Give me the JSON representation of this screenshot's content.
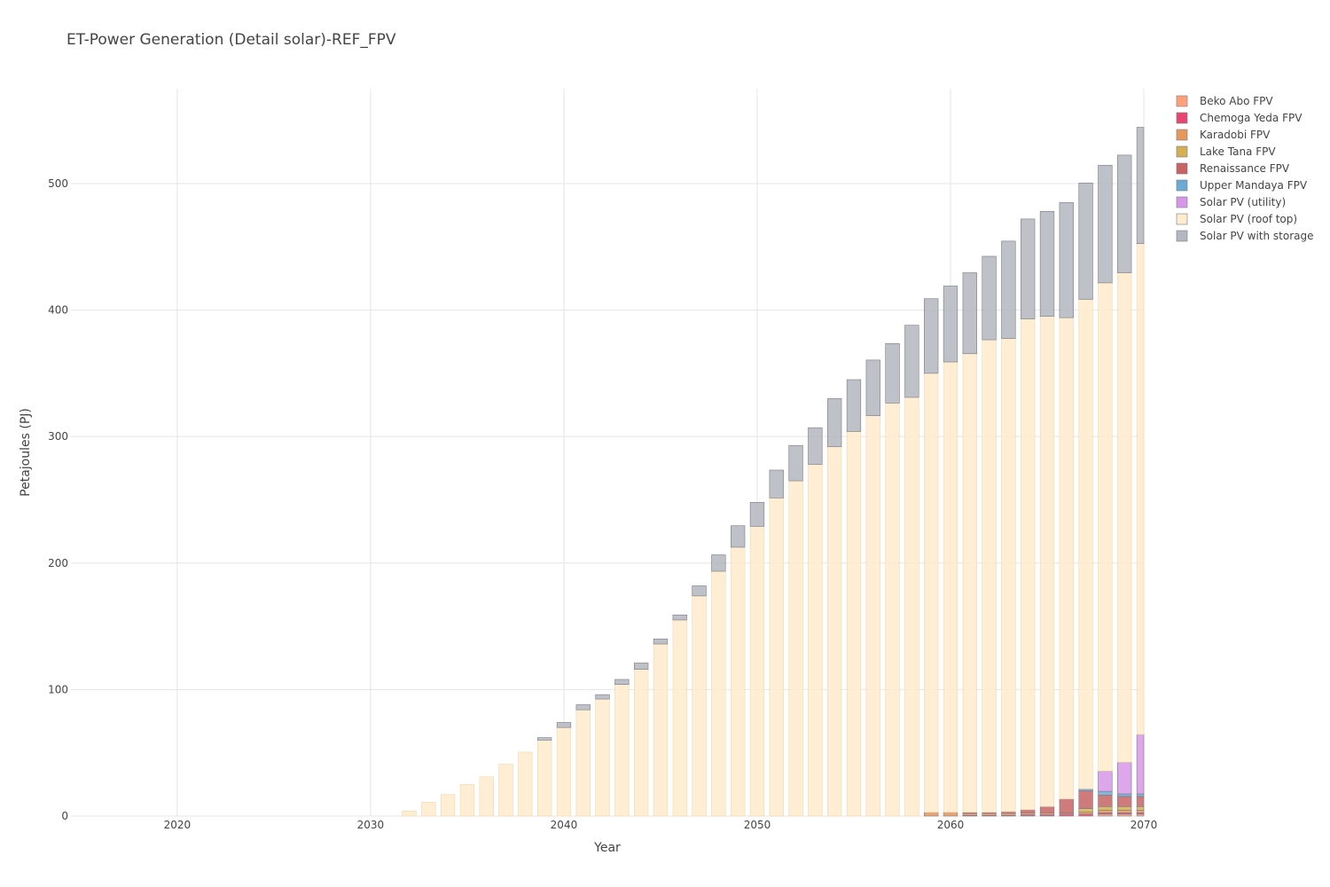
{
  "chart_data": {
    "type": "bar",
    "stacked": true,
    "title": "ET-Power Generation (Detail solar)-REF_FPV",
    "xlabel": "Year",
    "ylabel": "Petajoules (PJ)",
    "xlim": [
      2014.5,
      2070
    ],
    "ylim": [
      0,
      575
    ],
    "xticks": [
      2020,
      2030,
      2040,
      2050,
      2060,
      2070
    ],
    "yticks": [
      0,
      100,
      200,
      300,
      400,
      500
    ],
    "grid": true,
    "legend_position": "top-right",
    "years": [
      2015,
      2016,
      2017,
      2018,
      2019,
      2020,
      2021,
      2022,
      2023,
      2024,
      2025,
      2026,
      2027,
      2028,
      2029,
      2030,
      2031,
      2032,
      2033,
      2034,
      2035,
      2036,
      2037,
      2038,
      2039,
      2040,
      2041,
      2042,
      2043,
      2044,
      2045,
      2046,
      2047,
      2048,
      2049,
      2050,
      2051,
      2052,
      2053,
      2054,
      2055,
      2056,
      2057,
      2058,
      2059,
      2060,
      2061,
      2062,
      2063,
      2064,
      2065,
      2066,
      2067,
      2068,
      2069,
      2070
    ],
    "series": [
      {
        "name": "Beko Abo FPV",
        "color": "#ffa07a",
        "values": [
          0,
          0,
          0,
          0,
          0,
          0,
          0,
          0,
          0,
          0,
          0,
          0,
          0,
          0,
          0,
          0,
          0,
          0,
          0,
          0,
          0,
          0,
          0,
          0,
          0,
          0,
          0,
          0,
          0,
          0,
          0,
          0,
          0,
          0,
          0,
          0,
          0,
          0,
          0,
          0,
          0,
          0,
          0,
          0,
          0,
          0,
          0,
          0,
          0,
          0,
          0,
          0,
          0,
          1.5,
          1.5,
          1.5
        ]
      },
      {
        "name": "Chemoga Yeda FPV",
        "color": "#e8466e",
        "values": [
          0,
          0,
          0,
          0,
          0,
          0,
          0,
          0,
          0,
          0,
          0,
          0,
          0,
          0,
          0,
          0,
          0,
          0,
          0,
          0,
          0,
          0,
          0,
          0,
          0,
          0,
          0,
          0,
          0,
          0,
          0,
          0,
          0,
          0,
          0,
          0,
          0,
          0,
          0,
          0,
          0,
          0,
          0,
          0,
          0,
          0,
          0.5,
          0.5,
          0.5,
          1,
          1,
          1.5,
          1.5,
          1,
          1,
          1
        ]
      },
      {
        "name": "Karadobi FPV",
        "color": "#e5975c",
        "values": [
          0,
          0,
          0,
          0,
          0,
          0,
          0,
          0,
          0,
          0,
          0,
          0,
          0,
          0,
          0,
          0,
          0,
          0,
          0,
          0,
          0,
          0,
          0,
          0,
          0,
          0,
          0,
          0,
          0,
          0,
          0,
          0,
          0,
          0,
          0,
          0,
          0,
          0,
          0,
          0,
          0,
          0,
          0,
          0,
          3,
          3,
          1.5,
          1.5,
          1.5,
          1.5,
          1.5,
          1,
          1.5,
          2,
          2,
          2
        ]
      },
      {
        "name": "Lake Tana FPV",
        "color": "#d4b050",
        "values": [
          0,
          0,
          0,
          0,
          0,
          0,
          0,
          0,
          0,
          0,
          0,
          0,
          0,
          0,
          0,
          0,
          0,
          0,
          0,
          0,
          0,
          0,
          0,
          0,
          0,
          0,
          0,
          0,
          0,
          0,
          0,
          0,
          0,
          0,
          0,
          0,
          0,
          0,
          0,
          0,
          0,
          0,
          0,
          0,
          0,
          0,
          0,
          0,
          0,
          0,
          0,
          0,
          3,
          3,
          3,
          3
        ]
      },
      {
        "name": "Renaissance FPV",
        "color": "#c86464",
        "values": [
          0,
          0,
          0,
          0,
          0,
          0,
          0,
          0,
          0,
          0,
          0,
          0,
          0,
          0,
          0,
          0,
          0,
          0,
          0,
          0,
          0,
          0,
          0,
          0,
          0,
          0,
          0,
          0,
          0,
          0,
          0,
          0,
          0,
          0,
          0,
          0,
          0,
          0,
          0,
          0,
          0,
          0,
          0,
          0,
          0,
          0,
          1,
          1,
          1.5,
          2.5,
          5,
          11,
          14,
          9,
          8,
          8
        ]
      },
      {
        "name": "Upper Mandaya FPV",
        "color": "#6aaad4",
        "values": [
          0,
          0,
          0,
          0,
          0,
          0,
          0,
          0,
          0,
          0,
          0,
          0,
          0,
          0,
          0,
          0,
          0,
          0,
          0,
          0,
          0,
          0,
          0,
          0,
          0,
          0,
          0,
          0,
          0,
          0,
          0,
          0,
          0,
          0,
          0,
          0,
          0,
          0,
          0,
          0,
          0,
          0,
          0,
          0,
          0,
          0,
          0,
          0,
          0,
          0,
          0,
          0,
          1.5,
          3,
          2,
          2
        ]
      },
      {
        "name": "Solar PV (utility)",
        "color": "#d896e8",
        "values": [
          0,
          0,
          0,
          0,
          0,
          0,
          0,
          0,
          0,
          0,
          0,
          0,
          0,
          0,
          0,
          0,
          0,
          0,
          0,
          0,
          0,
          0,
          0,
          0,
          0,
          0,
          0,
          0,
          0,
          0,
          0,
          0,
          0,
          0,
          0,
          0,
          0,
          0,
          0,
          0,
          0,
          0,
          0,
          0,
          0,
          0,
          0,
          0,
          0,
          0,
          0,
          0,
          0,
          16,
          25,
          47
        ]
      },
      {
        "name": "Solar PV (roof top)",
        "color": "#ffebcd",
        "values": [
          0,
          0,
          0,
          0,
          0,
          0,
          0,
          0,
          0,
          0,
          0,
          0,
          0,
          0,
          0,
          0,
          0,
          4,
          11,
          17,
          25,
          31,
          41,
          50.5,
          60,
          70,
          84,
          92.5,
          104,
          116,
          136,
          155,
          174,
          193.5,
          212.5,
          229,
          251.5,
          265,
          278,
          292,
          304,
          316.5,
          326.5,
          331,
          347,
          356,
          362.5,
          373.5,
          374,
          388,
          387.5,
          380.5,
          387,
          386,
          387,
          388
        ]
      },
      {
        "name": "Solar PV with storage",
        "color": "#b4b6c0",
        "values": [
          0,
          0,
          0,
          0,
          0,
          0,
          0,
          0,
          0,
          0,
          0,
          0,
          0,
          0,
          0,
          0,
          0,
          0,
          0,
          0,
          0,
          0,
          0,
          0,
          2,
          4,
          4,
          3.5,
          4,
          5,
          4,
          4,
          8,
          13,
          17,
          19,
          22,
          28,
          29,
          38,
          41,
          44,
          47,
          57,
          59,
          60,
          64,
          66,
          77,
          79,
          83,
          91,
          92,
          93,
          93,
          92
        ]
      }
    ]
  }
}
